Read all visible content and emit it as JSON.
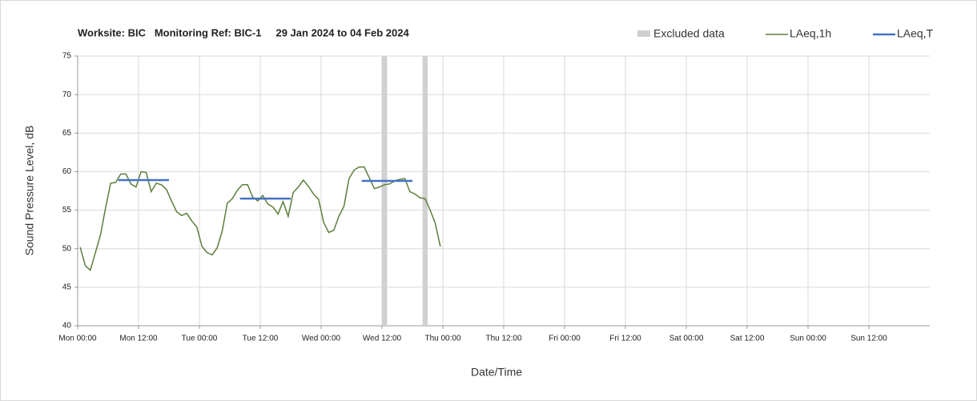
{
  "chart_data": {
    "type": "line",
    "title": "Worksite: BIC   Monitoring Ref: BIC-1     29 Jan 2024 to 04 Feb 2024",
    "x_label": "Date/Time",
    "y_label": "Sound Pressure Level, dB",
    "xlim": [
      0,
      168
    ],
    "ylim": [
      40,
      75
    ],
    "yticks": [
      40,
      45,
      50,
      55,
      60,
      65,
      70,
      75
    ],
    "xticks": [
      {
        "value": 0,
        "label": "Mon 00:00"
      },
      {
        "value": 12,
        "label": "Mon 12:00"
      },
      {
        "value": 24,
        "label": "Tue 00:00"
      },
      {
        "value": 36,
        "label": "Tue 12:00"
      },
      {
        "value": 48,
        "label": "Wed 00:00"
      },
      {
        "value": 60,
        "label": "Wed 12:00"
      },
      {
        "value": 72,
        "label": "Thu 00:00"
      },
      {
        "value": 84,
        "label": "Thu 12:00"
      },
      {
        "value": 96,
        "label": "Fri 00:00"
      },
      {
        "value": 108,
        "label": "Fri 12:00"
      },
      {
        "value": 120,
        "label": "Sat 00:00"
      },
      {
        "value": 132,
        "label": "Sat 12:00"
      },
      {
        "value": 144,
        "label": "Sun 00:00"
      },
      {
        "value": 156,
        "label": "Sun 12:00"
      }
    ],
    "grid": true,
    "excluded": {
      "name": "Excluded data",
      "color": "#d0d0d0",
      "ranges": [
        [
          60,
          61
        ],
        [
          68,
          69
        ]
      ]
    },
    "series": [
      {
        "name": "LAeq,1h",
        "color": "#5b7f3b",
        "x": [
          0.5,
          1.5,
          2.5,
          3.5,
          4.5,
          5.5,
          6.5,
          7.5,
          8.5,
          9.5,
          10.5,
          11.5,
          12.5,
          13.5,
          14.5,
          15.5,
          16.5,
          17.5,
          18.5,
          19.5,
          20.5,
          21.5,
          22.5,
          23.5,
          24.5,
          25.5,
          26.5,
          27.5,
          28.5,
          29.5,
          30.5,
          31.5,
          32.5,
          33.5,
          34.5,
          35.5,
          36.5,
          37.5,
          38.5,
          39.5,
          40.5,
          41.5,
          42.5,
          43.5,
          44.5,
          45.5,
          46.5,
          47.5,
          48.5,
          49.5,
          50.5,
          51.5,
          52.5,
          53.5,
          54.5,
          55.5,
          56.5,
          57.5,
          58.5,
          59.5,
          60.5,
          61.5,
          62.5,
          63.5,
          64.5,
          65.5,
          66.5,
          67.5,
          68.5,
          69.5,
          70.5,
          71.5
        ],
        "values": [
          50.2,
          47.8,
          47.2,
          49.5,
          51.8,
          55.3,
          58.5,
          58.6,
          59.7,
          59.7,
          58.4,
          58.0,
          60.0,
          59.9,
          57.4,
          58.5,
          58.3,
          57.7,
          56.2,
          54.8,
          54.3,
          54.6,
          53.6,
          52.8,
          50.3,
          49.5,
          49.2,
          50.1,
          52.3,
          55.9,
          56.5,
          57.6,
          58.3,
          58.3,
          56.7,
          56.2,
          56.9,
          55.8,
          55.4,
          54.5,
          56.1,
          54.2,
          57.3,
          58.0,
          58.9,
          58.1,
          57.1,
          56.4,
          53.4,
          52.1,
          52.4,
          54.2,
          55.5,
          59.1,
          60.2,
          60.6,
          60.6,
          59.2,
          57.8,
          58.0,
          58.3,
          58.4,
          58.8,
          59.0,
          59.1,
          57.4,
          57.1,
          56.6,
          56.5,
          55.0,
          53.3,
          50.3
        ]
      },
      {
        "name": "LAeq,T",
        "color": "#4472c4",
        "x": [
          8,
          18,
          null,
          32,
          42,
          null,
          56,
          66
        ],
        "values": [
          58.9,
          58.9,
          null,
          56.5,
          56.5,
          null,
          58.8,
          58.8
        ]
      }
    ]
  }
}
